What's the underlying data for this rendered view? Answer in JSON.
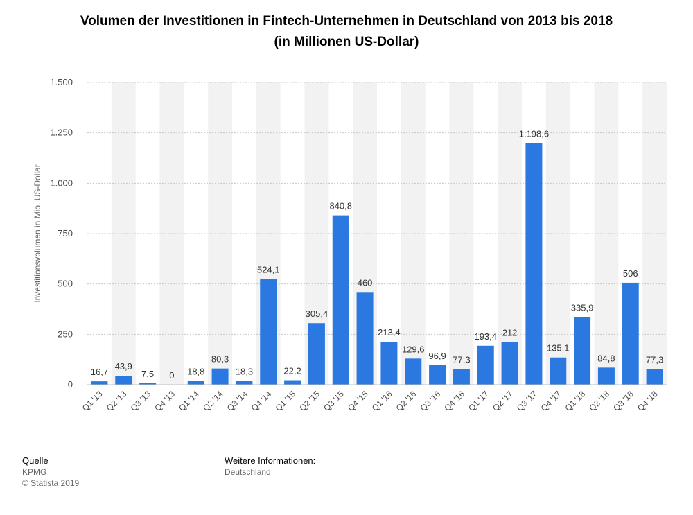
{
  "header": {
    "title_line1": "Volumen der Investitionen in Fintech-Unternehmen in Deutschland von 2013 bis 2018",
    "title_line2": "(in Millionen US-Dollar)"
  },
  "chart_data": {
    "type": "bar",
    "title": "Volumen der Investitionen in Fintech-Unternehmen in Deutschland von 2013 bis 2018 (in Millionen US-Dollar)",
    "ylabel": "Investitionsvolumen in Mio. US-Dollar",
    "xlabel": "",
    "ylim": [
      0,
      1500
    ],
    "yticks": [
      0,
      250,
      500,
      750,
      1000,
      1250,
      1500
    ],
    "ytick_labels": [
      "0",
      "250",
      "500",
      "750",
      "1.000",
      "1.250",
      "1.500"
    ],
    "grid": true,
    "bar_color": "#2a78e0",
    "categories": [
      "Q1 '13",
      "Q2 '13",
      "Q3 '13",
      "Q4 '13",
      "Q1 '14",
      "Q2 '14",
      "Q3 '14",
      "Q4 '14",
      "Q1 '15",
      "Q2 '15",
      "Q3 '15",
      "Q4 '15",
      "Q1 '16",
      "Q2 '16",
      "Q3 '16",
      "Q4 '16",
      "Q1 '17",
      "Q2 '17",
      "Q3 '17",
      "Q4 '17",
      "Q1 '18",
      "Q2 '18",
      "Q3 '18",
      "Q4 '18"
    ],
    "values": [
      16.7,
      43.9,
      7.5,
      0,
      18.8,
      80.3,
      18.3,
      524.1,
      22.2,
      305.4,
      840.8,
      460,
      213.4,
      129.6,
      96.9,
      77.3,
      193.4,
      212,
      1198.6,
      135.1,
      335.9,
      84.8,
      506,
      77.3
    ],
    "value_labels": [
      "16,7",
      "43,9",
      "7,5",
      "0",
      "18,8",
      "80,3",
      "18,3",
      "524,1",
      "22,2",
      "305,4",
      "840,8",
      "460",
      "213,4",
      "129,6",
      "96,9",
      "77,3",
      "193,4",
      "212",
      "1.198,6",
      "135,1",
      "335,9",
      "84,8",
      "506",
      "77,3"
    ]
  },
  "footer": {
    "source_heading": "Quelle",
    "source": "KPMG",
    "copyright": "© Statista 2019",
    "info_heading": "Weitere Informationen:",
    "info": "Deutschland"
  }
}
